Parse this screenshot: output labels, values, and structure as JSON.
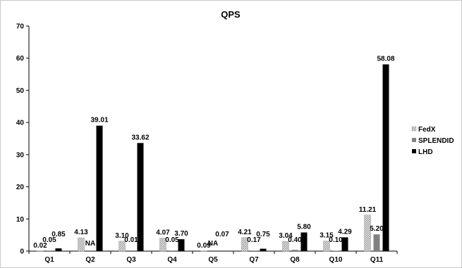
{
  "chart_data": {
    "type": "bar",
    "title": "QPS",
    "xlabel": "",
    "ylabel": "",
    "ylim": [
      0,
      70
    ],
    "yticks": [
      0,
      10,
      20,
      30,
      40,
      50,
      60,
      70
    ],
    "grid": false,
    "legend_position": "right",
    "categories": [
      "Q1",
      "Q2",
      "Q3",
      "Q4",
      "Q5",
      "Q7",
      "Q8",
      "Q10",
      "Q11"
    ],
    "series": [
      {
        "name": "FedX",
        "pattern": "hatched-light-gray",
        "color": "#bfbfbf",
        "values": [
          0.02,
          4.13,
          3.1,
          4.07,
          0.09,
          4.21,
          3.04,
          3.15,
          11.21
        ],
        "labels": [
          "0.02",
          "4.13",
          "3.10",
          "4.07",
          "0.09",
          "4.21",
          "3.04",
          "3.15",
          "11.21"
        ]
      },
      {
        "name": "SPLENDID",
        "pattern": "solid-gray",
        "color": "#808080",
        "values": [
          0.05,
          null,
          0.01,
          0.05,
          null,
          0.17,
          0.4,
          0.1,
          5.2
        ],
        "labels": [
          "0.05",
          "NA",
          "0.01",
          "0.05",
          "NA",
          "0.17",
          "0.40",
          "0.10",
          "5.20"
        ]
      },
      {
        "name": "LHD",
        "pattern": "solid-black",
        "color": "#000000",
        "values": [
          0.85,
          39.01,
          33.62,
          3.7,
          0.07,
          0.75,
          5.8,
          4.29,
          58.08
        ],
        "labels": [
          "0.85",
          "39.01",
          "33.62",
          "3.70",
          "0.07",
          "0.75",
          "5.80",
          "4.29",
          "58.08"
        ]
      }
    ]
  }
}
